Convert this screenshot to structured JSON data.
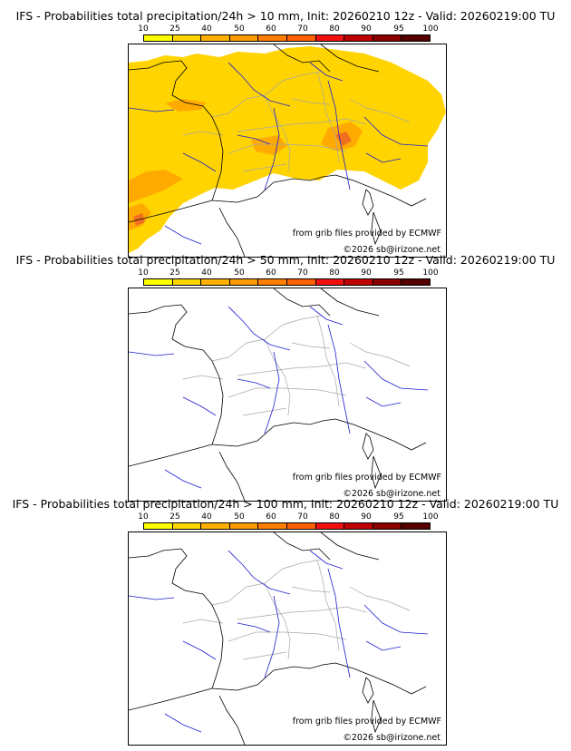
{
  "colorbar": {
    "ticks": [
      "10",
      "25",
      "40",
      "50",
      "60",
      "70",
      "80",
      "90",
      "95",
      "100"
    ],
    "colors": [
      "#ffff00",
      "#ffd700",
      "#ffb000",
      "#ff9a00",
      "#ff7e00",
      "#ff6000",
      "#f01010",
      "#c00000",
      "#8a0000",
      "#550000"
    ]
  },
  "colors": {
    "coast": "#000000",
    "borders": "#a8a8a8",
    "rivers": "#1e1ed2",
    "prob_light": "#ffd400",
    "prob_mid": "#ffaa00",
    "prob_high": "#f07020"
  },
  "credits": {
    "source": "from grib files provided by ECMWF",
    "copyright": "©2026 sb@irizone.net"
  },
  "panels": [
    {
      "title": "IFS - Probabilities total precipitation/24h > 10 mm, Init: 20260210 12z - Valid: 20260219:00 TU",
      "has_precip": true
    },
    {
      "title": "IFS - Probabilities total precipitation/24h > 50 mm, Init: 20260210 12z - Valid: 20260219:00 TU",
      "has_precip": false
    },
    {
      "title": "IFS - Probabilities total precipitation/24h > 100 mm, Init: 20260210 12z - Valid: 20260219:00 TU",
      "has_precip": false
    }
  ]
}
